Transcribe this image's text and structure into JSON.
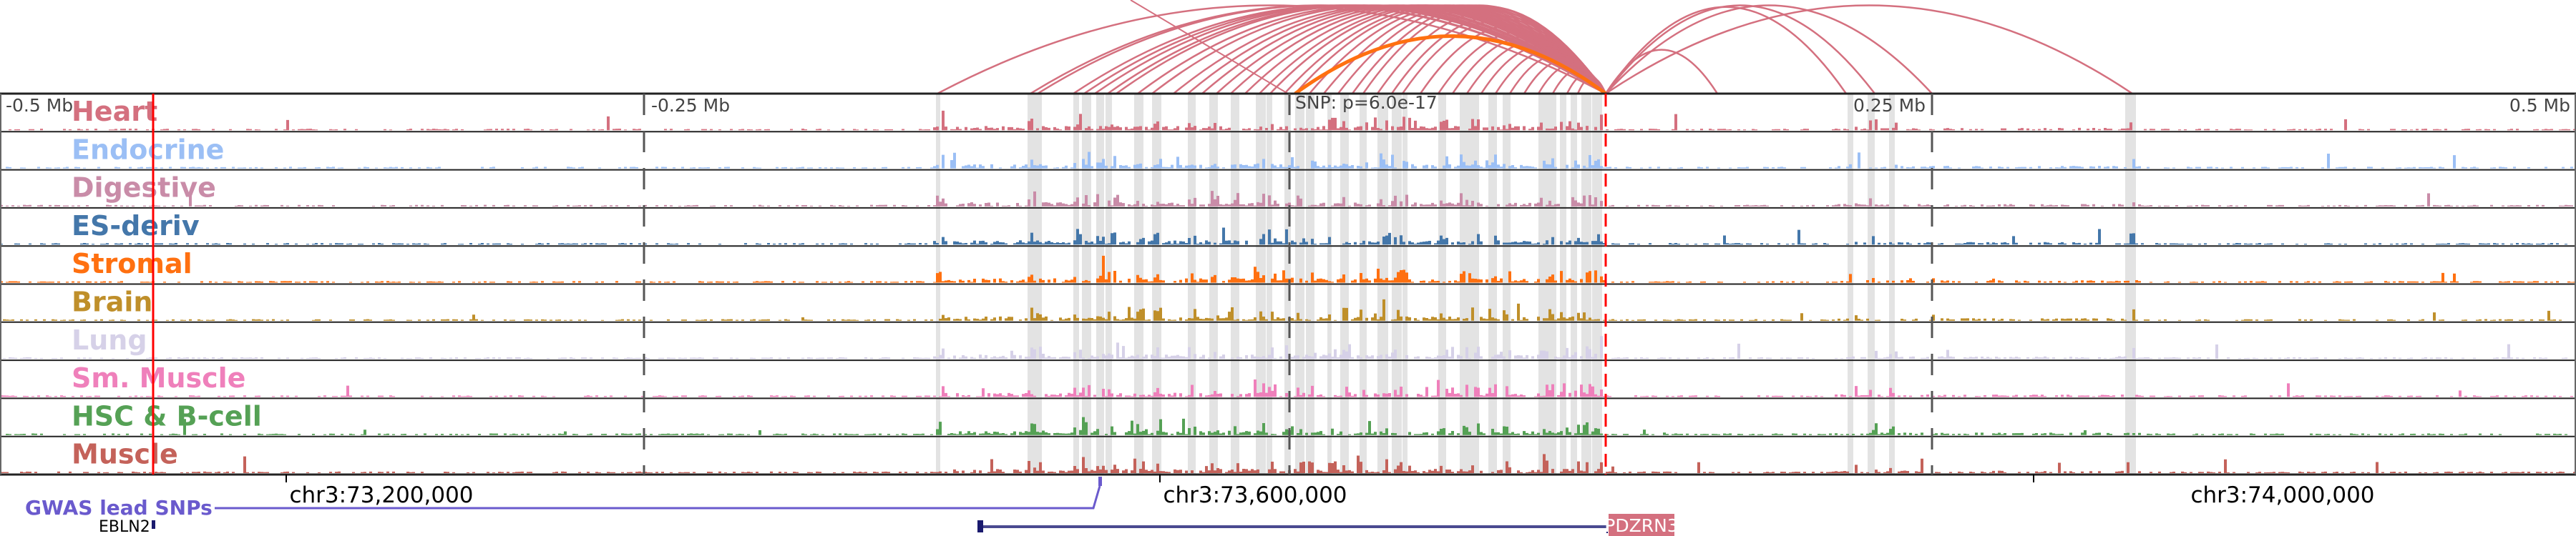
{
  "tracks": [
    {
      "label": "Heart",
      "color": "#d4707f"
    },
    {
      "label": "Endocrine",
      "color": "#9bbff5"
    },
    {
      "label": "Digestive",
      "color": "#c98ca8"
    },
    {
      "label": "ES-deriv",
      "color": "#4477aa"
    },
    {
      "label": "Stromal",
      "color": "#ff7010"
    },
    {
      "label": "Brain",
      "color": "#bf8f2a"
    },
    {
      "label": "Lung",
      "color": "#d6d1e8"
    },
    {
      "label": "Sm. Muscle",
      "color": "#ef80bb"
    },
    {
      "label": "HSC & B-cell",
      "color": "#55a155"
    },
    {
      "label": "Muscle",
      "color": "#c4625a"
    }
  ],
  "axis": {
    "minus_half": "-0.5 Mb",
    "minus_quarter": "-0.25 Mb",
    "plus_quarter": "0.25 Mb",
    "plus_half": "0.5 Mb",
    "snp_label": "SNP: p=6.0e-17"
  },
  "coords": [
    "chr3:73,200,000",
    "chr3:73,600,000",
    "chr3:74,000,000"
  ],
  "gwas": {
    "label": "GWAS lead SNPs",
    "color": "#6a5acd"
  },
  "genes": {
    "left": "EBLN2",
    "main": "PDZRN3"
  },
  "colors": {
    "arc": "#d4707f",
    "arc_highlight": "#ff7010",
    "tss_line": "#ff0000",
    "gene": "#1a1a6e"
  }
}
